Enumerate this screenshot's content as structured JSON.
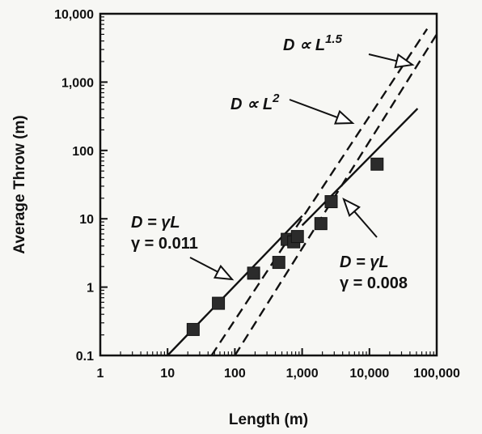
{
  "chart_data": {
    "type": "scatter",
    "title": "",
    "xlabel": "Length (m)",
    "ylabel": "Average Throw (m)",
    "x_scale": "log",
    "y_scale": "log",
    "xlim": [
      1,
      100000
    ],
    "ylim": [
      0.1,
      10000
    ],
    "grid": false,
    "x_ticks": [
      1,
      10,
      100,
      1000,
      10000,
      100000
    ],
    "x_tick_labels": [
      "1",
      "10",
      "100",
      "1,000",
      "10,000",
      "100,000"
    ],
    "y_ticks": [
      0.1,
      1,
      10,
      100,
      1000,
      10000
    ],
    "y_tick_labels": [
      "0.1",
      "1",
      "10",
      "100",
      "1,000",
      "10,000"
    ],
    "series": [
      {
        "kind": "points",
        "marker": "square",
        "x": [
          24,
          57,
          190,
          450,
          600,
          750,
          850,
          1900,
          2700,
          13000
        ],
        "y": [
          0.24,
          0.58,
          1.6,
          2.3,
          5.0,
          4.6,
          5.5,
          8.5,
          17.8,
          63
        ]
      },
      {
        "kind": "line",
        "style": "solid",
        "x": [
          10,
          1000
        ],
        "y": [
          0.1,
          11
        ]
      },
      {
        "kind": "line",
        "style": "solid",
        "x": [
          1000,
          52000
        ],
        "y": [
          8,
          410
        ]
      },
      {
        "kind": "line",
        "style": "dashed",
        "x": [
          45,
          72000
        ],
        "y": [
          0.1,
          6000
        ]
      },
      {
        "kind": "line",
        "style": "dashed",
        "x": [
          100,
          100000
        ],
        "y": [
          0.1,
          5000
        ]
      }
    ],
    "annotations": [
      {
        "lines": [
          {
            "text": "D ∝ L",
            "sup": "1.5",
            "italic": true
          }
        ],
        "arrow": "open-triangle",
        "x": 10000,
        "y": 3000
      },
      {
        "lines": [
          {
            "text": "D ∝ L",
            "sup": "2",
            "italic": true
          }
        ],
        "arrow": "open-triangle",
        "x": 2000,
        "y": 200
      },
      {
        "lines": [
          {
            "text": "D = γL",
            "italic": true
          },
          {
            "text": "γ = 0.011",
            "italic": false
          }
        ],
        "arrow": "open-triangle",
        "x": 30,
        "y": 1.5
      },
      {
        "lines": [
          {
            "text": "D = γL",
            "italic": true
          },
          {
            "text": "γ = 0.008",
            "italic": false
          }
        ],
        "arrow": "open-triangle",
        "x": 5000,
        "y": 20
      }
    ]
  }
}
